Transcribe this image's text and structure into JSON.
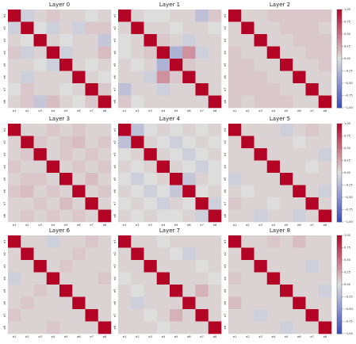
{
  "chart_data": [
    {
      "type": "heatmap",
      "title": "Layer 0",
      "x": [
        "e1",
        "e2",
        "e3",
        "e4",
        "e5",
        "e6",
        "e7",
        "e8"
      ],
      "y": [
        "e1",
        "e2",
        "e3",
        "e4",
        "e5",
        "e6",
        "e7",
        "e8"
      ],
      "zlim": [
        -1,
        1
      ],
      "values": [
        [
          1,
          -0.1,
          0.05,
          0.1,
          0.05,
          0.05,
          0,
          0.05
        ],
        [
          -0.1,
          1,
          0,
          -0.1,
          0.05,
          -0.1,
          0.1,
          0.1
        ],
        [
          0.05,
          0,
          1,
          0.05,
          0,
          0.05,
          0.05,
          -0.15
        ],
        [
          0.1,
          -0.1,
          0.05,
          1,
          -0.1,
          0.05,
          0.05,
          0.15
        ],
        [
          0.05,
          0.05,
          0,
          -0.1,
          1,
          0.05,
          0,
          0.05
        ],
        [
          0.05,
          -0.1,
          0.05,
          0.05,
          0.05,
          1,
          0.05,
          0
        ],
        [
          0,
          0.1,
          0.05,
          0.05,
          0,
          0.05,
          1,
          0.1
        ],
        [
          0.05,
          0.1,
          -0.15,
          0.15,
          0.05,
          0,
          0.1,
          1
        ]
      ]
    },
    {
      "type": "heatmap",
      "title": "Layer 1",
      "x": [
        "e1",
        "e2",
        "e3",
        "e4",
        "e5",
        "e6",
        "e7",
        "e8"
      ],
      "y": [
        "e1",
        "e2",
        "e3",
        "e4",
        "e5",
        "e6",
        "e7",
        "e8"
      ],
      "zlim": [
        -1,
        1
      ],
      "values": [
        [
          1,
          0.05,
          0,
          0,
          0.05,
          0.05,
          -0.2,
          0.1
        ],
        [
          0.05,
          1,
          0.05,
          0.05,
          0,
          0.05,
          0.05,
          0
        ],
        [
          0,
          0.05,
          1,
          0.1,
          0.05,
          -0.1,
          0.05,
          0.05
        ],
        [
          0,
          0.05,
          0.1,
          1,
          -0.3,
          0.35,
          -0.1,
          0.05
        ],
        [
          0.05,
          0,
          0.05,
          -0.3,
          1,
          0.1,
          0.05,
          0.05
        ],
        [
          0.05,
          0.05,
          -0.1,
          0.35,
          0.1,
          1,
          0.05,
          0.05
        ],
        [
          -0.2,
          0.05,
          0.05,
          -0.1,
          0.05,
          0.05,
          1,
          0.05
        ],
        [
          0.1,
          0,
          0.05,
          0.05,
          0.05,
          0.05,
          0.05,
          1
        ]
      ]
    },
    {
      "type": "heatmap",
      "title": "Layer 2",
      "x": [
        "e1",
        "e2",
        "e3",
        "e4",
        "e5",
        "e6",
        "e7",
        "e8"
      ],
      "y": [
        "e1",
        "e2",
        "e3",
        "e4",
        "e5",
        "e6",
        "e7",
        "e8"
      ],
      "zlim": [
        -1,
        1
      ],
      "zticks": [
        {
          "value": 1,
          "label": "1.00"
        },
        {
          "value": 0.75,
          "label": "0.75"
        },
        {
          "value": 0.5,
          "label": "0.50"
        },
        {
          "value": 0.25,
          "label": "0.25"
        },
        {
          "value": 0,
          "label": "0.00"
        },
        {
          "value": -0.25,
          "label": "−0.25"
        },
        {
          "value": -0.5,
          "label": "−0.50"
        },
        {
          "value": -0.75,
          "label": "−0.75"
        },
        {
          "value": -1,
          "label": "−1.00"
        }
      ],
      "values": [
        [
          1,
          0.05,
          0.05,
          0.1,
          0.1,
          0.1,
          0.1,
          0.1
        ],
        [
          0.05,
          1,
          0.05,
          0.05,
          0.1,
          0.1,
          0.1,
          0.05
        ],
        [
          0.05,
          0.05,
          1,
          0.05,
          0.05,
          0.1,
          0.1,
          0.1
        ],
        [
          0.1,
          0.05,
          0.05,
          1,
          0.05,
          0.05,
          0.1,
          0.1
        ],
        [
          0.1,
          0.1,
          0.05,
          0.05,
          1,
          0.05,
          0.05,
          0.1
        ],
        [
          0.1,
          0.1,
          0.1,
          0.05,
          0.05,
          1,
          0.05,
          0.05
        ],
        [
          0.1,
          0.1,
          0.1,
          0.1,
          0.05,
          0.05,
          1,
          0.05
        ],
        [
          0.1,
          0.05,
          0.1,
          0.1,
          0.1,
          0.05,
          0.05,
          1
        ]
      ]
    },
    {
      "type": "heatmap",
      "title": "Layer 3",
      "x": [
        "e1",
        "e2",
        "e3",
        "e4",
        "e5",
        "e6",
        "e7",
        "e8"
      ],
      "y": [
        "e1",
        "e2",
        "e3",
        "e4",
        "e5",
        "e6",
        "e7",
        "e8"
      ],
      "zlim": [
        -1,
        1
      ],
      "values": [
        [
          1,
          0.05,
          0.05,
          0.1,
          0.05,
          0.1,
          0.05,
          0.05
        ],
        [
          0.05,
          1,
          0.1,
          0.05,
          0.1,
          0.15,
          0.05,
          0.1
        ],
        [
          0.05,
          0.1,
          1,
          0.05,
          0.1,
          0.05,
          0.1,
          0.05
        ],
        [
          0.1,
          0.05,
          0.05,
          1,
          0.05,
          0.1,
          0.05,
          0.1
        ],
        [
          0.05,
          0.1,
          0.1,
          0.05,
          1,
          0.05,
          0.15,
          0.05
        ],
        [
          0.1,
          0.15,
          0.05,
          0.1,
          0.05,
          1,
          0.05,
          0.1
        ],
        [
          0.05,
          0.05,
          0.1,
          0.05,
          0.15,
          0.05,
          1,
          0.05
        ],
        [
          0.05,
          0.1,
          0.05,
          0.1,
          0.05,
          0.1,
          0.05,
          1
        ]
      ]
    },
    {
      "type": "heatmap",
      "title": "Layer 4",
      "x": [
        "e1",
        "e2",
        "e3",
        "e4",
        "e5",
        "e6",
        "e7",
        "e8"
      ],
      "y": [
        "e1",
        "e2",
        "e3",
        "e4",
        "e5",
        "e6",
        "e7",
        "e8"
      ],
      "zlim": [
        -1,
        1
      ],
      "values": [
        [
          1,
          -0.2,
          0,
          0.05,
          0,
          0.05,
          0,
          0.05
        ],
        [
          -0.2,
          1,
          0.05,
          0,
          -0.1,
          0,
          0.05,
          0
        ],
        [
          0,
          0.05,
          1,
          0.05,
          0,
          -0.1,
          0,
          0.05
        ],
        [
          0.05,
          0,
          0.05,
          1,
          0.05,
          0,
          -0.1,
          0
        ],
        [
          0,
          -0.1,
          0,
          0.05,
          1,
          -0.15,
          0.05,
          0
        ],
        [
          0.05,
          0,
          -0.1,
          0,
          -0.15,
          1,
          0,
          0.05
        ],
        [
          0,
          0.05,
          0,
          -0.1,
          0.05,
          0,
          1,
          -0.1
        ],
        [
          0.05,
          0,
          0.05,
          0,
          0,
          0.05,
          -0.1,
          1
        ]
      ]
    },
    {
      "type": "heatmap",
      "title": "Layer 5",
      "x": [
        "e1",
        "e2",
        "e3",
        "e4",
        "e5",
        "e6",
        "e7",
        "e8"
      ],
      "y": [
        "e1",
        "e2",
        "e3",
        "e4",
        "e5",
        "e6",
        "e7",
        "e8"
      ],
      "zlim": [
        -1,
        1
      ],
      "zticks": [
        {
          "value": 1,
          "label": "1.00"
        },
        {
          "value": 0.75,
          "label": "0.75"
        },
        {
          "value": 0.5,
          "label": "0.50"
        },
        {
          "value": 0.25,
          "label": "0.25"
        },
        {
          "value": 0,
          "label": "0.00"
        },
        {
          "value": -0.25,
          "label": "−0.25"
        },
        {
          "value": -0.5,
          "label": "−0.50"
        },
        {
          "value": -0.75,
          "label": "−0.75"
        },
        {
          "value": -1,
          "label": "−1.00"
        }
      ],
      "values": [
        [
          1,
          0.05,
          0.05,
          0.05,
          -0.1,
          0.05,
          0.1,
          0.05
        ],
        [
          0.05,
          1,
          0.05,
          0.05,
          0.05,
          0,
          0.05,
          0.05
        ],
        [
          0.05,
          0.05,
          1,
          0.05,
          0.05,
          0.05,
          0.05,
          -0.1
        ],
        [
          0.05,
          0.05,
          0.05,
          1,
          0.05,
          0.05,
          0,
          0.05
        ],
        [
          -0.1,
          0.05,
          0.05,
          0.05,
          1,
          0.05,
          0.05,
          0.05
        ],
        [
          0.05,
          0,
          0.05,
          0.05,
          0.05,
          1,
          0.05,
          -0.1
        ],
        [
          0.1,
          0.05,
          0.05,
          0,
          0.05,
          0.05,
          1,
          0.05
        ],
        [
          0.05,
          0.05,
          -0.1,
          0.05,
          0.05,
          -0.1,
          0.05,
          1
        ]
      ]
    },
    {
      "type": "heatmap",
      "title": "Layer 6",
      "x": [
        "e1",
        "e2",
        "e3",
        "e4",
        "e5",
        "e6",
        "e7",
        "e8"
      ],
      "y": [
        "e1",
        "e2",
        "e3",
        "e4",
        "e5",
        "e6",
        "e7",
        "e8"
      ],
      "zlim": [
        -1,
        1
      ],
      "values": [
        [
          1,
          0.05,
          0.05,
          -0.1,
          0.05,
          0.05,
          0.1,
          0.05
        ],
        [
          0.05,
          1,
          0.05,
          0.05,
          0.05,
          0.1,
          0.05,
          0.05
        ],
        [
          0.05,
          0.05,
          1,
          0.05,
          0.1,
          0.05,
          0.05,
          0.05
        ],
        [
          -0.1,
          0.05,
          0.05,
          1,
          0.05,
          0.05,
          0.05,
          0.1
        ],
        [
          0.05,
          0.05,
          0.1,
          0.05,
          1,
          0.05,
          0.05,
          0.05
        ],
        [
          0.05,
          0.1,
          0.05,
          0.05,
          0.05,
          1,
          0.05,
          0.05
        ],
        [
          0.1,
          0.05,
          0.05,
          0.05,
          0.05,
          0.05,
          1,
          0.05
        ],
        [
          0.05,
          0.05,
          0.05,
          0.1,
          0.05,
          0.05,
          0.05,
          1
        ]
      ]
    },
    {
      "type": "heatmap",
      "title": "Layer 7",
      "x": [
        "e1",
        "e2",
        "e3",
        "e4",
        "e5",
        "e6",
        "e7",
        "e8"
      ],
      "y": [
        "e1",
        "e2",
        "e3",
        "e4",
        "e5",
        "e6",
        "e7",
        "e8"
      ],
      "zlim": [
        -1,
        1
      ],
      "values": [
        [
          1,
          0.05,
          0.05,
          0,
          0.05,
          0.05,
          0.05,
          0.05
        ],
        [
          0.05,
          1,
          0.05,
          0.05,
          0,
          -0.1,
          0.05,
          0.05
        ],
        [
          0.05,
          0.05,
          1,
          0.05,
          0.05,
          0.05,
          0,
          0.05
        ],
        [
          0,
          0.05,
          0.05,
          1,
          0.05,
          0.05,
          0.05,
          0
        ],
        [
          0.05,
          0,
          0.05,
          0.05,
          1,
          0.05,
          0.2,
          0.05
        ],
        [
          0.05,
          -0.1,
          0.05,
          0.05,
          0.05,
          1,
          0.05,
          0.05
        ],
        [
          0.05,
          0.05,
          0,
          0.05,
          0.2,
          0.05,
          1,
          0.05
        ],
        [
          0.05,
          0.05,
          0.05,
          0,
          0.05,
          0.05,
          0.05,
          1
        ]
      ]
    },
    {
      "type": "heatmap",
      "title": "Layer 8",
      "x": [
        "e1",
        "e2",
        "e3",
        "e4",
        "e5",
        "e6",
        "e7",
        "e8"
      ],
      "y": [
        "e1",
        "e2",
        "e3",
        "e4",
        "e5",
        "e6",
        "e7",
        "e8"
      ],
      "zlim": [
        -1,
        1
      ],
      "zticks": [
        {
          "value": 1,
          "label": "1.00"
        },
        {
          "value": 0.75,
          "label": "0.75"
        },
        {
          "value": 0.5,
          "label": "0.50"
        },
        {
          "value": 0.25,
          "label": "0.25"
        },
        {
          "value": 0,
          "label": "0.00"
        },
        {
          "value": -0.25,
          "label": "−0.25"
        },
        {
          "value": -0.5,
          "label": "−0.50"
        },
        {
          "value": -0.75,
          "label": "−0.75"
        },
        {
          "value": -1,
          "label": "−1.00"
        }
      ],
      "values": [
        [
          1,
          0.05,
          0.05,
          0.1,
          0.05,
          0.15,
          0.05,
          0.05
        ],
        [
          0.05,
          1,
          0.05,
          0.05,
          0.05,
          0.05,
          0.05,
          0.05
        ],
        [
          0.05,
          0.05,
          1,
          0.05,
          0.05,
          0.05,
          -0.1,
          0.05
        ],
        [
          0.1,
          0.05,
          0.05,
          1,
          0.05,
          0.05,
          0.05,
          0.05
        ],
        [
          0.05,
          0.05,
          0.05,
          0.05,
          1,
          0.05,
          0.05,
          -0.1
        ],
        [
          0.15,
          0.05,
          0.05,
          0.05,
          0.05,
          1,
          0.05,
          0.05
        ],
        [
          0.05,
          0.05,
          -0.1,
          0.05,
          0.05,
          0.05,
          1,
          0.05
        ],
        [
          0.05,
          0.05,
          0.05,
          0.05,
          -0.1,
          0.05,
          0.05,
          1
        ]
      ]
    }
  ]
}
